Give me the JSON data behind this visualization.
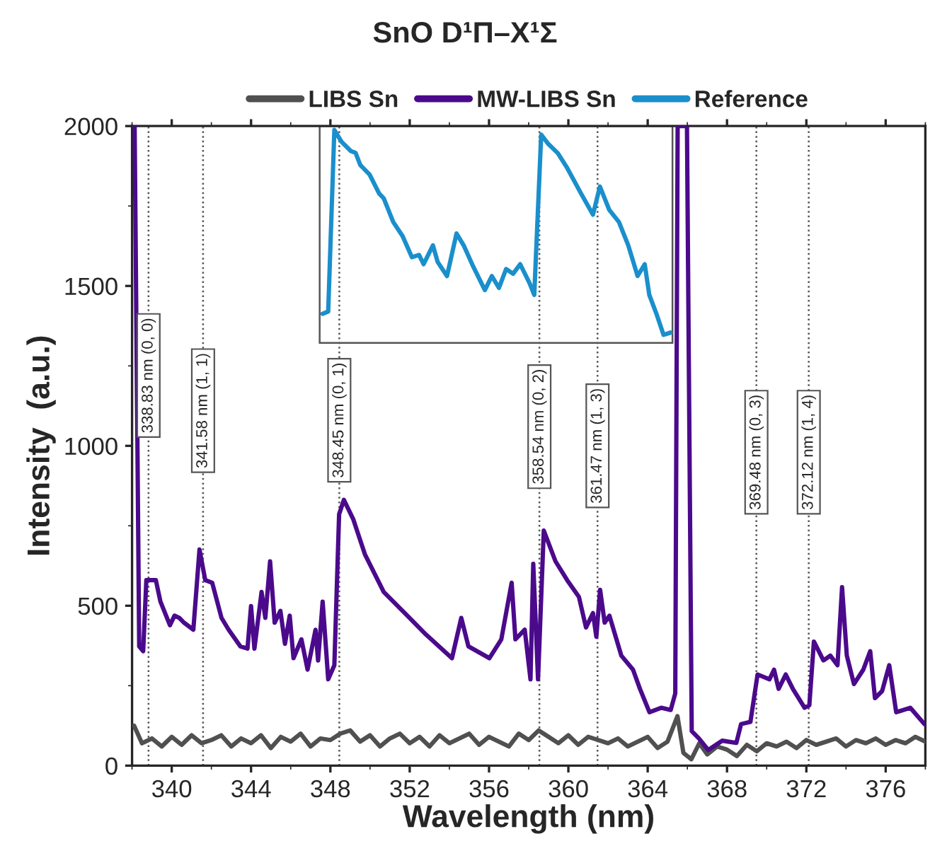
{
  "chart_data": {
    "type": "line",
    "title": "SnO D¹Π–X¹Σ",
    "xlabel": "Wavelength (nm)",
    "ylabel": "Intensity  (a.u.)",
    "xlim": [
      338,
      378
    ],
    "xticks": [
      340,
      344,
      348,
      352,
      356,
      360,
      364,
      368,
      372,
      376
    ],
    "ylim": [
      0,
      2000
    ],
    "yticks": [
      0,
      500,
      1000,
      1500,
      2000
    ],
    "grid": false,
    "legend": "top",
    "line_style": "solid",
    "marker": "none",
    "series": [
      {
        "name": "LIBS Sn",
        "color": "#505050",
        "x": [
          338.1,
          338.5,
          339.0,
          339.5,
          340.0,
          340.5,
          341.0,
          341.5,
          342.0,
          342.5,
          343.0,
          343.5,
          344.0,
          344.5,
          345.0,
          345.5,
          346.0,
          346.5,
          347.0,
          347.5,
          348.0,
          348.5,
          349.0,
          349.5,
          350.0,
          350.5,
          351.0,
          351.5,
          352.0,
          352.5,
          353.0,
          353.5,
          354.0,
          354.5,
          355.0,
          355.5,
          356.0,
          356.5,
          357.0,
          357.5,
          358.0,
          358.5,
          359.0,
          359.5,
          360.0,
          360.5,
          361.0,
          361.5,
          362.0,
          362.5,
          363.0,
          363.5,
          364.0,
          364.5,
          365.0,
          365.5,
          365.8,
          366.2,
          366.6,
          367.0,
          367.5,
          368.0,
          368.5,
          369.0,
          369.5,
          370.0,
          370.5,
          371.0,
          371.5,
          372.0,
          372.5,
          373.0,
          373.5,
          374.0,
          374.5,
          375.0,
          375.5,
          376.0,
          376.5,
          377.0,
          377.5,
          378.0
        ],
        "values": [
          125,
          70,
          85,
          60,
          90,
          65,
          95,
          70,
          80,
          95,
          60,
          85,
          70,
          95,
          55,
          90,
          75,
          100,
          60,
          85,
          80,
          100,
          110,
          75,
          95,
          60,
          85,
          100,
          70,
          90,
          60,
          95,
          70,
          85,
          100,
          65,
          90,
          75,
          60,
          100,
          80,
          110,
          90,
          70,
          95,
          65,
          90,
          80,
          70,
          85,
          60,
          75,
          90,
          55,
          75,
          155,
          40,
          20,
          70,
          35,
          60,
          50,
          30,
          65,
          45,
          70,
          60,
          75,
          55,
          80,
          65,
          75,
          85,
          60,
          80,
          70,
          85,
          65,
          80,
          70,
          90,
          75
        ]
      },
      {
        "name": "MW-LIBS Sn",
        "color": "#4b0a8c",
        "x": [
          338.13,
          338.36,
          338.56,
          338.72,
          339.2,
          339.43,
          339.91,
          340.14,
          340.38,
          340.62,
          341.09,
          341.4,
          341.69,
          342.04,
          342.51,
          342.87,
          343.46,
          343.82,
          344.0,
          344.17,
          344.53,
          344.72,
          344.96,
          345.19,
          345.48,
          345.71,
          345.95,
          346.14,
          346.54,
          346.85,
          347.25,
          347.38,
          347.61,
          347.89,
          348.2,
          348.44,
          348.68,
          349.15,
          349.74,
          350.69,
          351.88,
          352.82,
          354.13,
          354.6,
          354.96,
          356.02,
          356.62,
          357.14,
          357.33,
          357.8,
          358.09,
          358.23,
          358.47,
          358.76,
          359.35,
          359.94,
          360.53,
          360.89,
          361.24,
          361.41,
          361.6,
          361.83,
          362.07,
          362.67,
          363.26,
          363.61,
          364.09,
          364.68,
          365.16,
          365.39,
          365.51,
          365.98,
          366.22,
          366.58,
          367.05,
          367.76,
          368.47,
          368.71,
          369.18,
          369.54,
          370.14,
          370.37,
          370.6,
          370.96,
          371.32,
          371.91,
          372.15,
          372.38,
          372.86,
          373.21,
          373.57,
          373.8,
          374.04,
          374.4,
          374.87,
          375.22,
          375.46,
          375.82,
          376.18,
          376.53,
          377.24,
          377.95
        ],
        "values": [
          2000,
          373,
          358,
          580,
          580,
          513,
          439,
          469,
          462,
          447,
          425,
          676,
          580,
          572,
          462,
          425,
          373,
          366,
          499,
          366,
          543,
          462,
          639,
          447,
          484,
          381,
          469,
          336,
          395,
          300,
          425,
          329,
          513,
          270,
          314,
          786,
          831,
          771,
          661,
          543,
          469,
          410,
          336,
          462,
          373,
          336,
          395,
          572,
          395,
          425,
          270,
          631,
          270,
          735,
          639,
          580,
          528,
          432,
          477,
          403,
          550,
          447,
          469,
          344,
          300,
          240,
          167,
          181,
          174,
          226,
          2000,
          2000,
          108,
          85,
          49,
          78,
          71,
          130,
          137,
          285,
          270,
          300,
          240,
          285,
          240,
          181,
          189,
          388,
          329,
          344,
          314,
          558,
          344,
          255,
          300,
          358,
          211,
          233,
          314,
          167,
          181,
          130
        ]
      },
      {
        "name": "Reference",
        "color": "#1a8fcc",
        "x": [
          347.61,
          347.89,
          348.2,
          348.56,
          349.03,
          349.27,
          349.51,
          349.98,
          350.46,
          350.69,
          351.17,
          351.64,
          352.11,
          352.47,
          352.7,
          353.17,
          353.41,
          353.88,
          354.36,
          354.72,
          355.2,
          355.79,
          356.14,
          356.5,
          356.86,
          357.21,
          357.57,
          358.04,
          358.28,
          358.63,
          358.99,
          359.47,
          359.94,
          360.64,
          361.24,
          361.59,
          362.06,
          362.55,
          363.02,
          363.49,
          363.85,
          364.08,
          364.44,
          364.8,
          365.15
        ],
        "values": [
          1413,
          1420,
          1988,
          1951,
          1922,
          1916,
          1878,
          1848,
          1789,
          1774,
          1700,
          1656,
          1590,
          1597,
          1568,
          1627,
          1575,
          1531,
          1664,
          1627,
          1561,
          1487,
          1531,
          1494,
          1553,
          1538,
          1568,
          1509,
          1472,
          1973,
          1944,
          1915,
          1869,
          1789,
          1723,
          1811,
          1738,
          1700,
          1627,
          1531,
          1568,
          1472,
          1413,
          1347,
          1354
        ]
      }
    ],
    "ref_lines": [
      {
        "axis": "x",
        "value": 338.83,
        "label": "338.83 nm (0, 0)",
        "color": "#555555",
        "line_style": "dotted"
      },
      {
        "axis": "x",
        "value": 341.58,
        "label": "341.58 nm (1, 1)",
        "color": "#555555",
        "line_style": "dotted"
      },
      {
        "axis": "x",
        "value": 348.45,
        "label": "348.45 nm (0, 1)",
        "color": "#555555",
        "line_style": "dotted"
      },
      {
        "axis": "x",
        "value": 358.54,
        "label": "358.54 nm (0, 2)",
        "color": "#555555",
        "line_style": "dotted"
      },
      {
        "axis": "x",
        "value": 361.47,
        "label": "361.47 nm (1, 3)",
        "color": "#555555",
        "line_style": "dotted"
      },
      {
        "axis": "x",
        "value": 369.48,
        "label": "369.48 nm (0, 3)",
        "color": "#555555",
        "line_style": "dotted"
      },
      {
        "axis": "x",
        "value": 372.12,
        "label": "372.12 nm (1, 4)",
        "color": "#555555",
        "line_style": "dotted"
      }
    ]
  }
}
